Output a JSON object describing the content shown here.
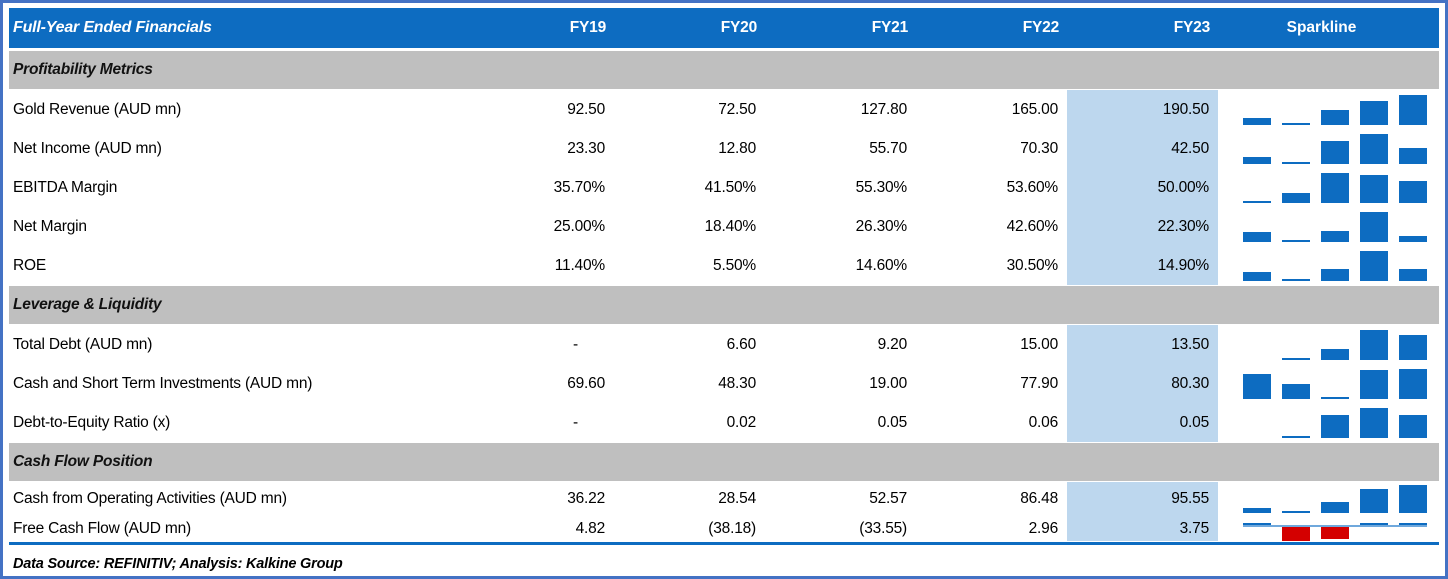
{
  "colors": {
    "header_blue": "#0d6cc1",
    "sparkline_bar_blue": "#0d6cc1",
    "negative_bar_red": "#d40000",
    "fy23_highlight": "#bdd7ee",
    "section_gray": "#bfbfbf",
    "outer_border_blue": "#4472c4",
    "sparkline_axis_light_blue": "#6fa8dc"
  },
  "chart_data": {
    "type": "table",
    "title": "Full-Year Ended Financials",
    "columns": [
      "FY19",
      "FY20",
      "FY21",
      "FY22",
      "FY23"
    ],
    "sparkline_header": "Sparkline",
    "highlight_column": "FY23",
    "sparkline_type": "bar",
    "sections": [
      {
        "label": "Profitability Metrics",
        "rows": [
          {
            "label": "Gold Revenue (AUD mn)",
            "display": [
              "92.50",
              "72.50",
              "127.80",
              "165.00",
              "190.50"
            ],
            "values": [
              92.5,
              72.5,
              127.8,
              165.0,
              190.5
            ]
          },
          {
            "label": "Net Income (AUD mn)",
            "display": [
              "23.30",
              "12.80",
              "55.70",
              "70.30",
              "42.50"
            ],
            "values": [
              23.3,
              12.8,
              55.7,
              70.3,
              42.5
            ]
          },
          {
            "label": "EBITDA Margin",
            "display": [
              "35.70%",
              "41.50%",
              "55.30%",
              "53.60%",
              "50.00%"
            ],
            "values": [
              35.7,
              41.5,
              55.3,
              53.6,
              50.0
            ]
          },
          {
            "label": "Net Margin",
            "display": [
              "25.00%",
              "18.40%",
              "26.30%",
              "42.60%",
              "22.30%"
            ],
            "values": [
              25.0,
              18.4,
              26.3,
              42.6,
              22.3
            ]
          },
          {
            "label": "ROE",
            "display": [
              "11.40%",
              "5.50%",
              "14.60%",
              "30.50%",
              "14.90%"
            ],
            "values": [
              11.4,
              5.5,
              14.6,
              30.5,
              14.9
            ]
          }
        ]
      },
      {
        "label": "Leverage & Liquidity",
        "rows": [
          {
            "label": "Total Debt (AUD mn)",
            "display": [
              "-",
              "6.60",
              "9.20",
              "15.00",
              "13.50"
            ],
            "values": [
              null,
              6.6,
              9.2,
              15.0,
              13.5
            ]
          },
          {
            "label": "Cash and Short Term Investments (AUD mn)",
            "display": [
              "69.60",
              "48.30",
              "19.00",
              "77.90",
              "80.30"
            ],
            "values": [
              69.6,
              48.3,
              19.0,
              77.9,
              80.3
            ]
          },
          {
            "label": "Debt-to-Equity Ratio (x)",
            "display": [
              "-",
              "0.02",
              "0.05",
              "0.06",
              "0.05"
            ],
            "values": [
              null,
              0.02,
              0.05,
              0.06,
              0.05
            ]
          }
        ]
      },
      {
        "label": "Cash Flow Position",
        "rows": [
          {
            "label": "Cash from Operating Activities (AUD mn)",
            "display": [
              "36.22",
              "28.54",
              "52.57",
              "86.48",
              "95.55"
            ],
            "values": [
              36.22,
              28.54,
              52.57,
              86.48,
              95.55
            ],
            "size": "compact1"
          },
          {
            "label": "Free Cash Flow (AUD mn)",
            "display": [
              "4.82",
              "(38.18)",
              "(33.55)",
              "2.96",
              "3.75"
            ],
            "values": [
              4.82,
              -38.18,
              -33.55,
              2.96,
              3.75
            ],
            "size": "compact2"
          }
        ]
      }
    ],
    "footer": "Data Source: REFINITIV; Analysis: Kalkine Group"
  }
}
